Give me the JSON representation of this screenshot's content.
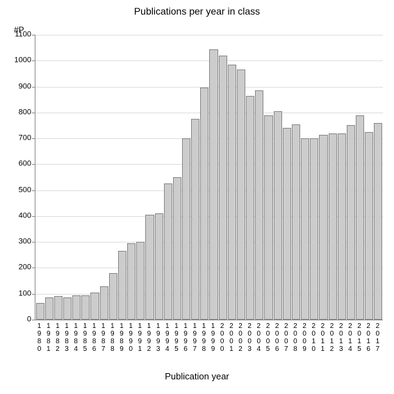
{
  "chart": {
    "type": "bar",
    "title": "Publications per year in class",
    "title_fontsize": 14,
    "y_axis_unit_label": "#P",
    "x_axis_label": "Publication year",
    "label_fontsize": 13,
    "categories": [
      "1980",
      "1981",
      "1982",
      "1983",
      "1984",
      "1985",
      "1986",
      "1987",
      "1988",
      "1989",
      "1990",
      "1991",
      "1992",
      "1993",
      "1994",
      "1995",
      "1996",
      "1997",
      "1998",
      "1999",
      "2000",
      "2001",
      "2002",
      "2003",
      "2004",
      "2005",
      "2006",
      "2007",
      "2008",
      "2009",
      "2010",
      "2011",
      "2012",
      "2013",
      "2014",
      "2015",
      "2016",
      "2017"
    ],
    "values": [
      65,
      85,
      90,
      85,
      95,
      95,
      105,
      130,
      180,
      265,
      295,
      300,
      405,
      410,
      525,
      550,
      700,
      775,
      895,
      1045,
      1020,
      985,
      965,
      865,
      885,
      790,
      805,
      740,
      755,
      700,
      700,
      715,
      720,
      720,
      750,
      790,
      725,
      760
    ],
    "ylim": [
      0,
      1100
    ],
    "ytick_step": 100,
    "yticks": [
      0,
      100,
      200,
      300,
      400,
      500,
      600,
      700,
      800,
      900,
      1000,
      1100
    ],
    "bar_color": "#cccccc",
    "bar_border_color": "#888888",
    "grid_color": "#dddddd",
    "axis_color": "#888888",
    "background_color": "#ffffff",
    "tick_fontsize": 11,
    "xtick_fontsize": 10
  }
}
